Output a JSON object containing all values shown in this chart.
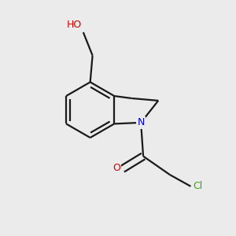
{
  "background_color": "#ebebeb",
  "bond_color": "#1a1a1a",
  "bond_width": 1.6,
  "fig_width": 3.0,
  "fig_height": 3.0,
  "dpi": 100,
  "label_HO": {
    "text": "HO",
    "color": "#cc0000",
    "fontsize": 9
  },
  "label_N": {
    "text": "N",
    "color": "#0000cc",
    "fontsize": 9
  },
  "label_O": {
    "text": "O",
    "color": "#cc0000",
    "fontsize": 9
  },
  "label_Cl": {
    "text": "Cl",
    "color": "#33aa00",
    "fontsize": 9
  }
}
